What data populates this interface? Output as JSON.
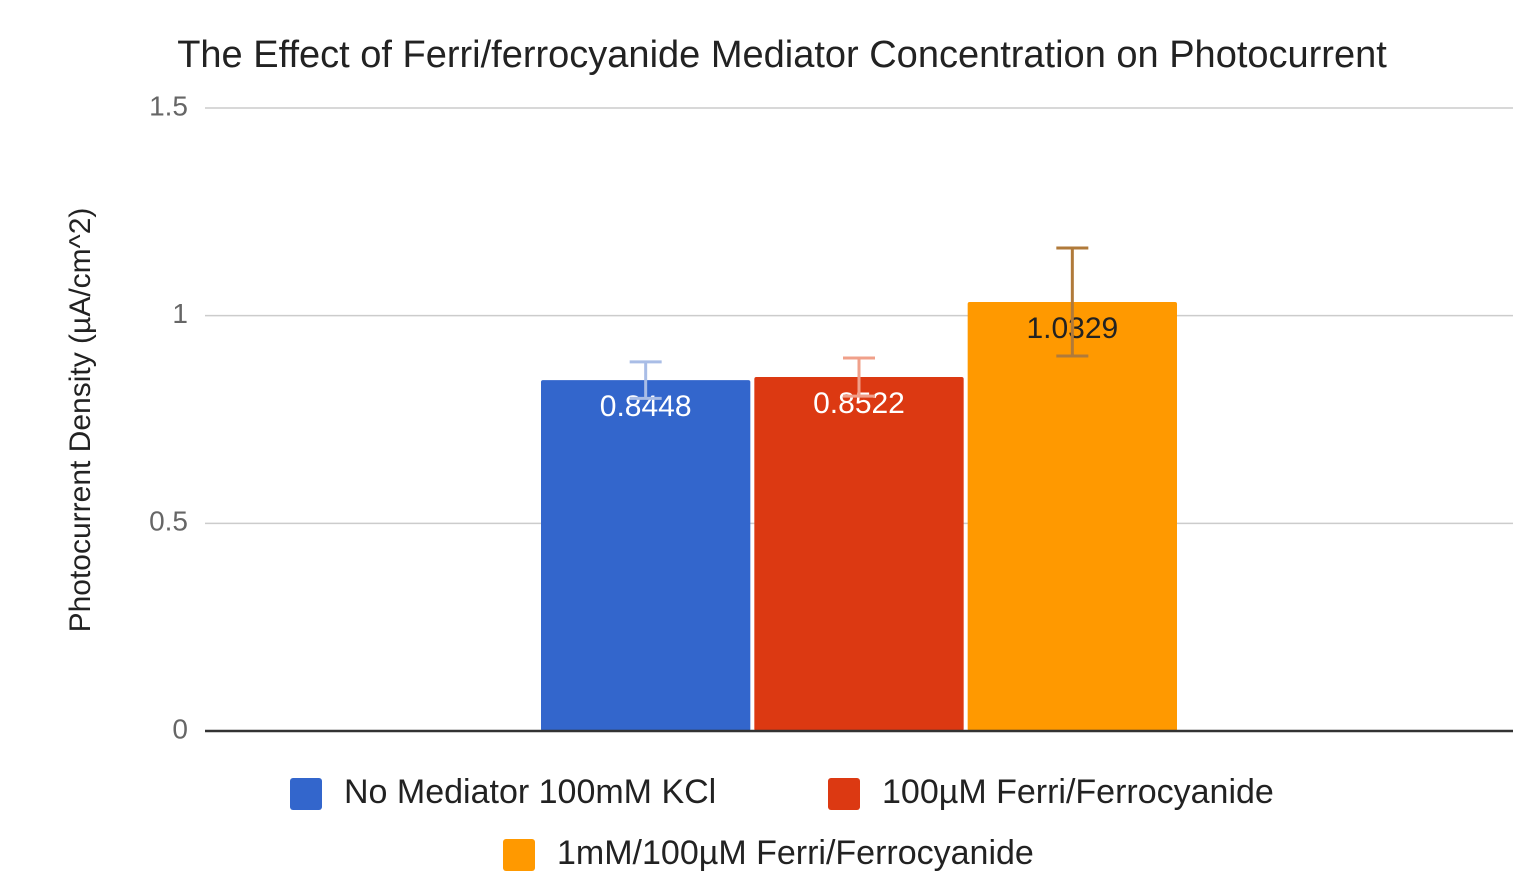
{
  "chart_data": {
    "type": "bar",
    "title": "The Effect of Ferri/ferrocyanide Mediator Concentration on Photocurrent",
    "y_label": "Photocurrent Density (µA/cm^2)",
    "categories": [
      null
    ],
    "series": [
      {
        "name": "No Mediator 100mM KCl",
        "color": "#3366cc",
        "error_color": "#a9bde6",
        "values": [
          0.8448
        ],
        "errors": [
          0.044
        ]
      },
      {
        "name": "100µM Ferri/Ferrocyanide",
        "color": "#dc3912",
        "error_color": "#f0a08a",
        "values": [
          0.8522
        ],
        "errors": [
          0.046
        ]
      },
      {
        "name": "1mM/100µM Ferri/Ferrocyanide",
        "color": "#ff9900",
        "error_color": "#b07a3a",
        "values": [
          1.0329
        ],
        "errors": [
          0.13
        ]
      }
    ],
    "ylim": [
      0,
      1.5
    ],
    "yticks": [
      0,
      0.5,
      1,
      1.5
    ],
    "grid": true
  }
}
